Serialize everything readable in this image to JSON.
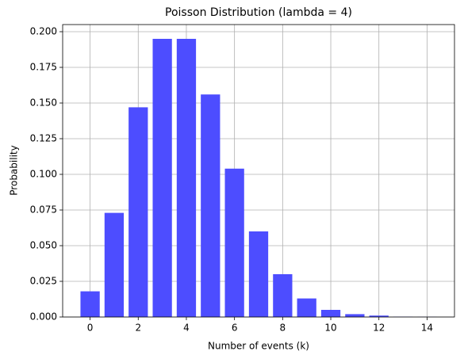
{
  "chart_data": {
    "type": "bar",
    "title": "Poisson Distribution (lambda = 4)",
    "xlabel": "Number of events (k)",
    "ylabel": "Probability",
    "x": [
      0,
      1,
      2,
      3,
      4,
      5,
      6,
      7,
      8,
      9,
      10,
      11,
      12,
      13,
      14
    ],
    "values": [
      0.018,
      0.073,
      0.147,
      0.195,
      0.195,
      0.156,
      0.104,
      0.06,
      0.03,
      0.013,
      0.005,
      0.002,
      0.001,
      0.0002,
      0.0001
    ],
    "color": "#4d4dff",
    "xlim": [
      -1.14,
      15.14
    ],
    "xticks": [
      0,
      2,
      4,
      6,
      8,
      10,
      12,
      14
    ],
    "ylim": [
      0,
      0.205
    ],
    "yticks": [
      {
        "value": 0,
        "label": "0.000"
      },
      {
        "value": 0.025,
        "label": "0.025"
      },
      {
        "value": 0.05,
        "label": "0.050"
      },
      {
        "value": 0.075,
        "label": "0.075"
      },
      {
        "value": 0.1,
        "label": "0.100"
      },
      {
        "value": 0.125,
        "label": "0.125"
      },
      {
        "value": 0.15,
        "label": "0.150"
      },
      {
        "value": 0.175,
        "label": "0.175"
      },
      {
        "value": 0.2,
        "label": "0.200"
      }
    ],
    "grid": true
  }
}
